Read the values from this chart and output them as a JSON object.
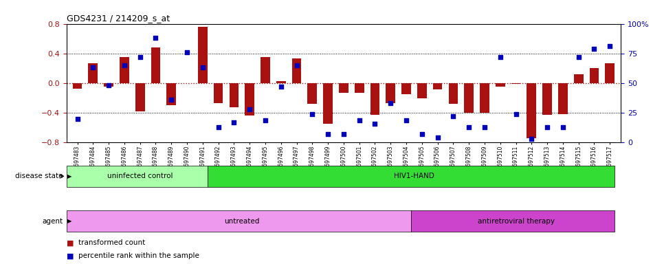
{
  "title": "GDS4231 / 214209_s_at",
  "samples": [
    "GSM697483",
    "GSM697484",
    "GSM697485",
    "GSM697486",
    "GSM697487",
    "GSM697488",
    "GSM697489",
    "GSM697490",
    "GSM697491",
    "GSM697492",
    "GSM697493",
    "GSM697494",
    "GSM697495",
    "GSM697496",
    "GSM697497",
    "GSM697498",
    "GSM697499",
    "GSM697500",
    "GSM697501",
    "GSM697502",
    "GSM697503",
    "GSM697504",
    "GSM697505",
    "GSM697506",
    "GSM697507",
    "GSM697508",
    "GSM697509",
    "GSM697510",
    "GSM697511",
    "GSM697512",
    "GSM697513",
    "GSM697514",
    "GSM697515",
    "GSM697516",
    "GSM697517"
  ],
  "bar_values": [
    -0.07,
    0.27,
    -0.05,
    0.35,
    -0.38,
    0.48,
    -0.3,
    0.0,
    0.76,
    -0.27,
    -0.32,
    -0.44,
    0.35,
    0.03,
    0.33,
    -0.28,
    -0.55,
    -0.13,
    -0.13,
    -0.43,
    -0.27,
    -0.15,
    -0.2,
    -0.08,
    -0.28,
    -0.4,
    -0.4,
    -0.05,
    -0.01,
    -0.74,
    -0.43,
    -0.42,
    0.12,
    0.2,
    0.27
  ],
  "percentile_values": [
    20,
    63,
    48,
    65,
    72,
    88,
    36,
    76,
    63,
    13,
    17,
    28,
    19,
    47,
    65,
    24,
    7,
    7,
    19,
    16,
    33,
    19,
    7,
    4,
    22,
    13,
    13,
    72,
    24,
    3,
    13,
    13,
    72,
    79,
    81
  ],
  "bar_color": "#AA1111",
  "dot_color": "#0000BB",
  "ylim": [
    -0.8,
    0.8
  ],
  "y2lim": [
    0,
    100
  ],
  "yticks_left": [
    -0.8,
    -0.4,
    0.0,
    0.4,
    0.8
  ],
  "yticks_right": [
    0,
    25,
    50,
    75,
    100
  ],
  "disease_state_groups": [
    {
      "label": "uninfected control",
      "start": 0,
      "end": 9,
      "color": "#aaffaa"
    },
    {
      "label": "HIV1-HAND",
      "start": 9,
      "end": 35,
      "color": "#33dd33"
    }
  ],
  "agent_groups": [
    {
      "label": "untreated",
      "start": 0,
      "end": 22,
      "color": "#ee99ee"
    },
    {
      "label": "antiretroviral therapy",
      "start": 22,
      "end": 35,
      "color": "#cc44cc"
    }
  ],
  "disease_state_label": "disease state",
  "agent_label": "agent",
  "legend": [
    {
      "color": "#AA1111",
      "label": "transformed count"
    },
    {
      "color": "#0000BB",
      "label": "percentile rank within the sample"
    }
  ]
}
